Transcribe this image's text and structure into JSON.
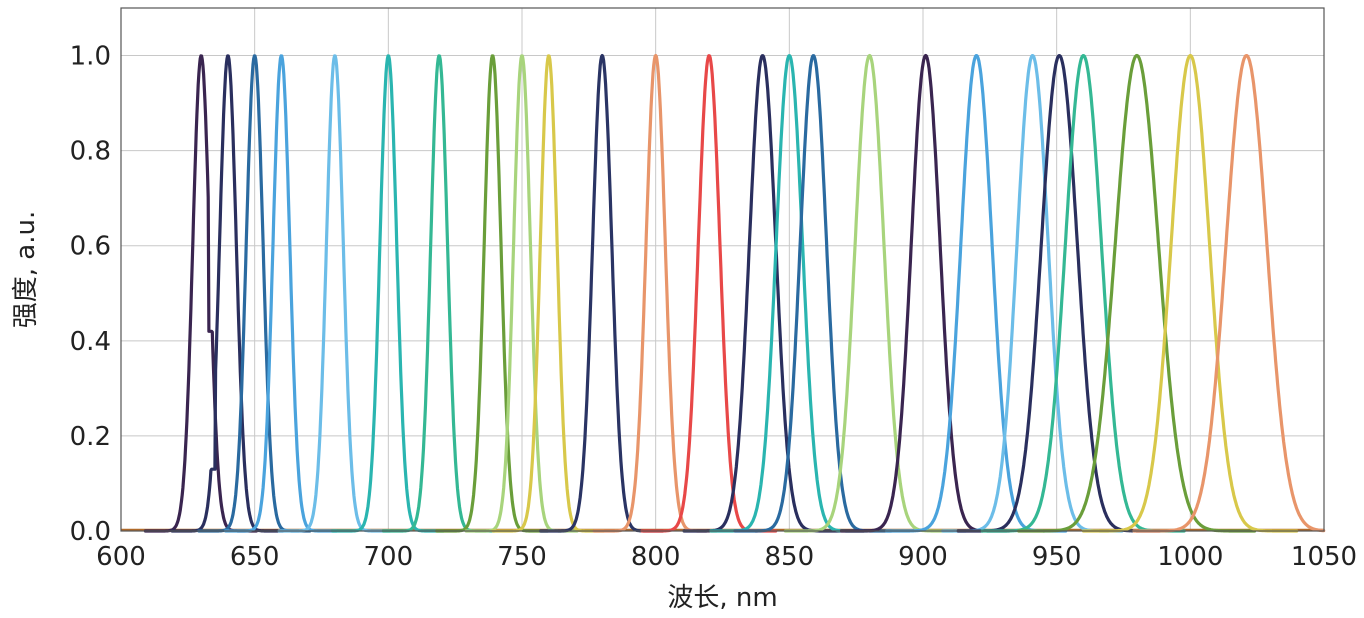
{
  "chart_data": {
    "type": "line",
    "xlabel": "波长, nm",
    "ylabel": "强度, a.u.",
    "xlim": [
      600,
      1050
    ],
    "ylim": [
      0,
      1.1
    ],
    "x_ticks": [
      "600",
      "650",
      "700",
      "750",
      "800",
      "850",
      "900",
      "950",
      "1000",
      "1050"
    ],
    "y_ticks": [
      "0.0",
      "0.2",
      "0.4",
      "0.6",
      "0.8",
      "1.0"
    ],
    "x_tick_values": [
      600,
      650,
      700,
      750,
      800,
      850,
      900,
      950,
      1000,
      1050
    ],
    "y_tick_values": [
      0,
      0.2,
      0.4,
      0.6,
      0.8,
      1.0
    ],
    "grid": true,
    "series": [
      {
        "peak": 630,
        "fwhm": 7,
        "color": "#3a2550",
        "shoulder": [
          634,
          0.41
        ]
      },
      {
        "peak": 640,
        "fwhm": 7,
        "color": "#2a2f5e",
        "shoulder": [
          634,
          0.12
        ]
      },
      {
        "peak": 650,
        "fwhm": 7,
        "color": "#2a6aa0"
      },
      {
        "peak": 660,
        "fwhm": 7,
        "color": "#4aa3dd"
      },
      {
        "peak": 680,
        "fwhm": 7,
        "color": "#6cbde8"
      },
      {
        "peak": 700,
        "fwhm": 7,
        "color": "#2ab5b0"
      },
      {
        "peak": 719,
        "fwhm": 7,
        "color": "#34b894"
      },
      {
        "peak": 739,
        "fwhm": 7,
        "color": "#6a9e3a"
      },
      {
        "peak": 750,
        "fwhm": 7,
        "color": "#a8d47c"
      },
      {
        "peak": 760,
        "fwhm": 7,
        "color": "#d8c84a"
      },
      {
        "peak": 780,
        "fwhm": 8,
        "color": "#2a3464"
      },
      {
        "peak": 800,
        "fwhm": 8,
        "color": "#e8956a"
      },
      {
        "peak": 820,
        "fwhm": 9,
        "color": "#e84848"
      },
      {
        "peak": 840,
        "fwhm": 11,
        "color": "#2a2f5e"
      },
      {
        "peak": 850,
        "fwhm": 11,
        "color": "#2ab5b0"
      },
      {
        "peak": 859,
        "fwhm": 11,
        "color": "#2a6aa0"
      },
      {
        "peak": 880,
        "fwhm": 12,
        "color": "#a8d47c"
      },
      {
        "peak": 901,
        "fwhm": 12,
        "color": "#3a2550"
      },
      {
        "peak": 920,
        "fwhm": 13,
        "color": "#4aa3dd"
      },
      {
        "peak": 941,
        "fwhm": 13,
        "color": "#6cbde8"
      },
      {
        "peak": 951,
        "fwhm": 15,
        "color": "#2a2f5e"
      },
      {
        "peak": 960,
        "fwhm": 15,
        "color": "#34b894"
      },
      {
        "peak": 980,
        "fwhm": 18,
        "color": "#6a9e3a"
      },
      {
        "peak": 1000,
        "fwhm": 16,
        "color": "#d8c84a"
      },
      {
        "peak": 1021,
        "fwhm": 17,
        "color": "#e8956a"
      }
    ]
  }
}
